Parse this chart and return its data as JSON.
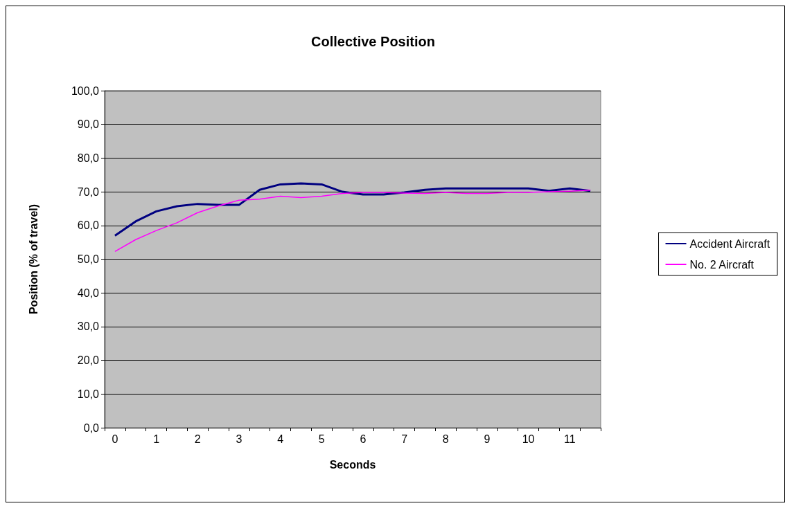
{
  "chart_data": {
    "type": "line",
    "title": "Collective Position",
    "xlabel": "Seconds",
    "ylabel": "Position (% of travel)",
    "categories": [
      "0",
      null,
      "1",
      null,
      "2",
      null,
      "3",
      null,
      "4",
      null,
      "5",
      null,
      "6",
      null,
      "7",
      null,
      "8",
      null,
      "9",
      null,
      "10",
      null,
      "11",
      null
    ],
    "series": [
      {
        "name": "Accident Aircraft",
        "color": "#000080",
        "values": [
          57.0,
          61.2,
          64.2,
          65.7,
          66.4,
          66.1,
          66.1,
          70.6,
          72.2,
          72.5,
          72.2,
          70.0,
          69.2,
          69.2,
          69.8,
          70.6,
          71.0,
          71.0,
          71.0,
          71.0,
          71.0,
          70.3,
          71.0,
          70.3
        ]
      },
      {
        "name": "No. 2 Aircraft",
        "color": "#ff00ff",
        "values": [
          52.3,
          55.8,
          58.5,
          60.8,
          63.8,
          65.8,
          67.5,
          67.8,
          68.7,
          68.3,
          68.7,
          69.5,
          69.8,
          69.8,
          69.6,
          69.5,
          69.8,
          69.5,
          69.5,
          69.8,
          69.8,
          70.0,
          70.2,
          70.5
        ]
      }
    ],
    "ylim": [
      0,
      100
    ],
    "yticks": [
      {
        "value": 0,
        "label": "0,0"
      },
      {
        "value": 10,
        "label": "10,0"
      },
      {
        "value": 20,
        "label": "20,0"
      },
      {
        "value": 30,
        "label": "30,0"
      },
      {
        "value": 40,
        "label": "40,0"
      },
      {
        "value": 50,
        "label": "50,0"
      },
      {
        "value": 60,
        "label": "60,0"
      },
      {
        "value": 70,
        "label": "70,0"
      },
      {
        "value": 80,
        "label": "80,0"
      },
      {
        "value": 90,
        "label": "90,0"
      },
      {
        "value": 100,
        "label": "100,0"
      }
    ],
    "grid": "y",
    "legend": "right",
    "marker": "none",
    "line_style": "solid"
  }
}
